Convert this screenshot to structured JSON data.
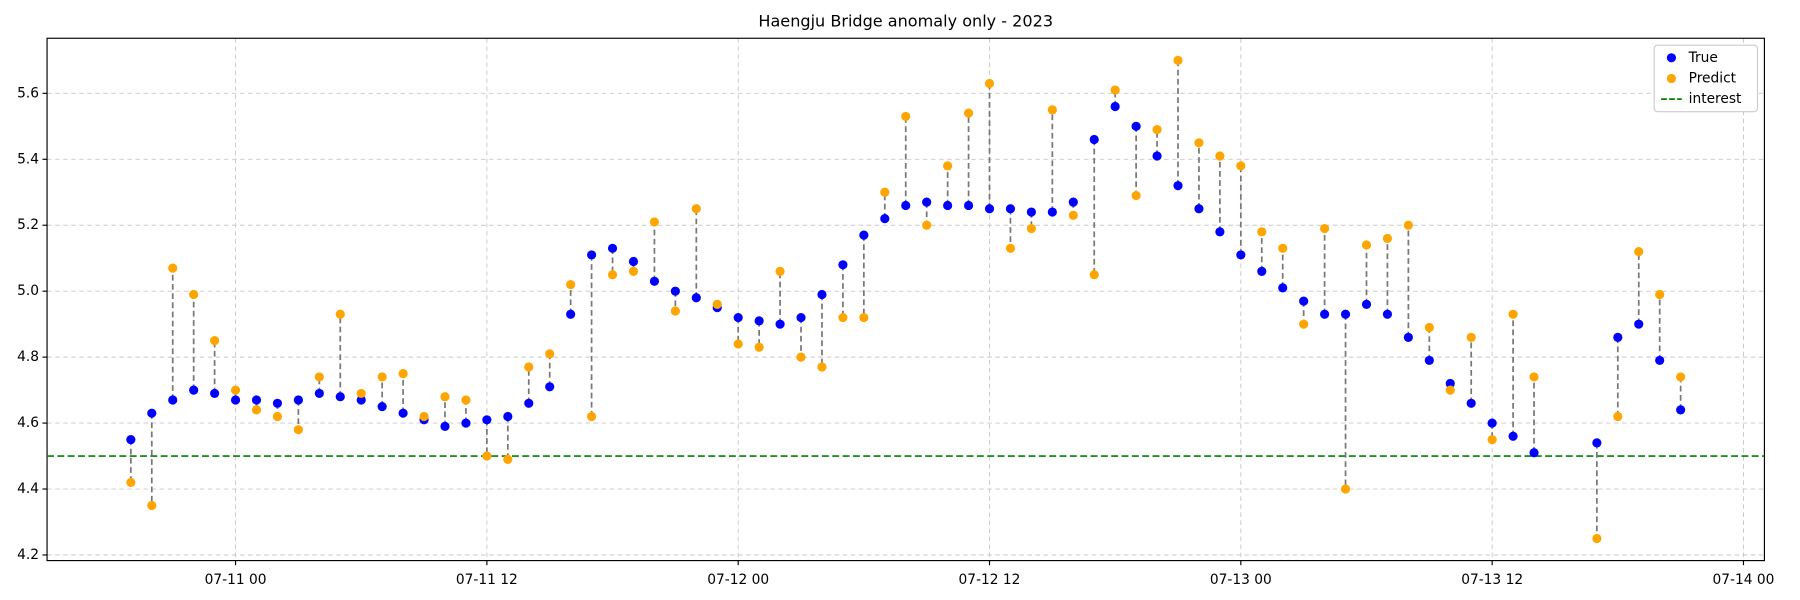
{
  "chart_data": {
    "type": "scatter",
    "title": "Haengju Bridge anomaly only - 2023",
    "x": [
      "07-10 19",
      "07-10 20",
      "07-10 21",
      "07-10 22",
      "07-10 23",
      "07-11 00",
      "07-11 01",
      "07-11 02",
      "07-11 03",
      "07-11 04",
      "07-11 05",
      "07-11 06",
      "07-11 07",
      "07-11 08",
      "07-11 09",
      "07-11 10",
      "07-11 11",
      "07-11 12",
      "07-11 13",
      "07-11 14",
      "07-11 15",
      "07-11 16",
      "07-11 17",
      "07-11 18",
      "07-11 19",
      "07-11 20",
      "07-11 21",
      "07-11 22",
      "07-11 23",
      "07-12 00",
      "07-12 01",
      "07-12 02",
      "07-12 03",
      "07-12 04",
      "07-12 05",
      "07-12 06",
      "07-12 07",
      "07-12 08",
      "07-12 09",
      "07-12 10",
      "07-12 11",
      "07-12 12",
      "07-12 13",
      "07-12 14",
      "07-12 15",
      "07-12 16",
      "07-12 17",
      "07-12 18",
      "07-12 19",
      "07-12 20",
      "07-12 21",
      "07-12 22",
      "07-12 23",
      "07-13 00",
      "07-13 01",
      "07-13 02",
      "07-13 03",
      "07-13 04",
      "07-13 05",
      "07-13 06",
      "07-13 07",
      "07-13 08",
      "07-13 09",
      "07-13 10",
      "07-13 11",
      "07-13 12",
      "07-13 13",
      "07-13 14",
      "07-13 17",
      "07-13 18",
      "07-13 19",
      "07-13 20",
      "07-13 21"
    ],
    "series": [
      {
        "name": "True",
        "color": "#0000ff",
        "values": [
          4.55,
          4.63,
          4.67,
          4.7,
          4.69,
          4.67,
          4.67,
          4.66,
          4.67,
          4.69,
          4.68,
          4.67,
          4.65,
          4.63,
          4.61,
          4.59,
          4.6,
          4.61,
          4.62,
          4.66,
          4.71,
          4.93,
          5.11,
          5.13,
          5.09,
          5.03,
          5.0,
          4.98,
          4.95,
          4.92,
          4.91,
          4.9,
          4.92,
          4.99,
          5.08,
          5.17,
          5.22,
          5.26,
          5.27,
          5.26,
          5.26,
          5.25,
          5.25,
          5.24,
          5.24,
          5.27,
          5.46,
          5.56,
          5.5,
          5.41,
          5.32,
          5.25,
          5.18,
          5.11,
          5.06,
          5.01,
          4.97,
          4.93,
          4.93,
          4.96,
          4.93,
          4.86,
          4.79,
          4.72,
          4.66,
          4.6,
          4.56,
          4.51,
          4.54,
          4.86,
          4.9,
          4.79,
          4.64
        ]
      },
      {
        "name": "Predict",
        "color": "#ffa500",
        "values": [
          4.42,
          4.35,
          5.07,
          4.99,
          4.85,
          4.7,
          4.64,
          4.62,
          4.58,
          4.74,
          4.93,
          4.69,
          4.74,
          4.75,
          4.62,
          4.68,
          4.67,
          4.5,
          4.49,
          4.77,
          4.81,
          5.02,
          4.62,
          5.05,
          5.06,
          5.21,
          4.94,
          5.25,
          4.96,
          4.84,
          4.83,
          5.06,
          4.8,
          4.77,
          4.92,
          4.92,
          5.3,
          5.53,
          5.2,
          5.38,
          5.54,
          5.63,
          5.13,
          5.19,
          5.55,
          5.23,
          5.05,
          5.61,
          5.29,
          5.49,
          5.7,
          5.45,
          5.41,
          5.38,
          5.18,
          5.13,
          4.9,
          5.19,
          4.4,
          5.14,
          5.16,
          5.2,
          4.89,
          4.7,
          4.86,
          4.55,
          4.93,
          4.74,
          4.25,
          4.62,
          5.12,
          4.99,
          4.74
        ]
      }
    ],
    "interest": {
      "name": "interest",
      "value": 4.5,
      "color": "#008000"
    },
    "xlim": [
      "07-10 15",
      "07-14 01"
    ],
    "xticks": [
      "07-11 00",
      "07-11 12",
      "07-12 00",
      "07-12 12",
      "07-13 00",
      "07-13 12",
      "07-14 00"
    ],
    "ylim": [
      4.183,
      5.767
    ],
    "yticks": [
      4.2,
      4.4,
      4.6,
      4.8,
      {
        "value": 5,
        "label": "5.0"
      },
      5.2,
      5.4,
      5.6
    ],
    "grid": true,
    "legend": "upper right"
  }
}
